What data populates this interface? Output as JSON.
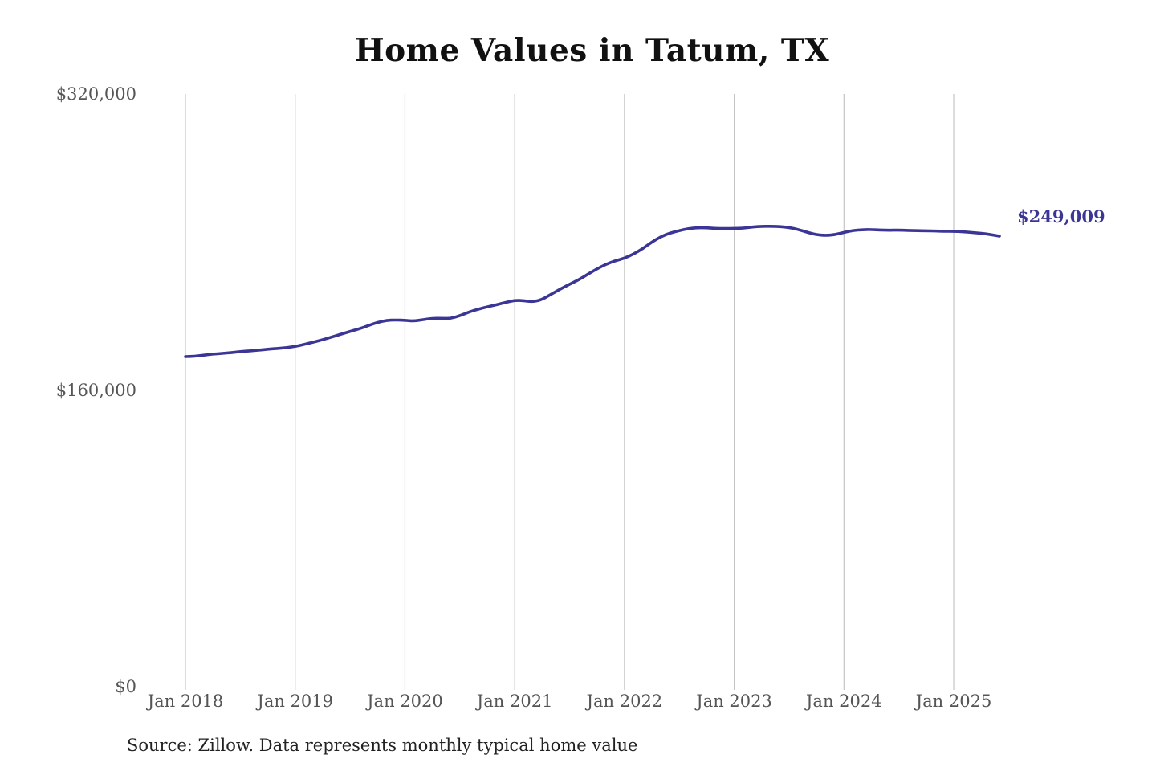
{
  "chart_data": {
    "type": "line",
    "title": "Home Values in Tatum, TX",
    "xlabel": "",
    "ylabel": "",
    "source_note": "Source: Zillow. Data represents monthly typical home value",
    "y_ticks": [
      {
        "value": 0,
        "label": "$0"
      },
      {
        "value": 160000,
        "label": "$160,000"
      },
      {
        "value": 320000,
        "label": "$320,000"
      }
    ],
    "ylim": [
      0,
      320000
    ],
    "x_ticks": [
      {
        "date": "2018-01",
        "label": "Jan 2018"
      },
      {
        "date": "2019-01",
        "label": "Jan 2019"
      },
      {
        "date": "2020-01",
        "label": "Jan 2020"
      },
      {
        "date": "2021-01",
        "label": "Jan 2021"
      },
      {
        "date": "2022-01",
        "label": "Jan 2022"
      },
      {
        "date": "2023-01",
        "label": "Jan 2023"
      },
      {
        "date": "2024-01",
        "label": "Jan 2024"
      },
      {
        "date": "2025-01",
        "label": "Jan 2025"
      }
    ],
    "grid": "vertical",
    "line_color": "#3b3596",
    "end_label": "$249,009",
    "series": [
      {
        "x": [
          "2018-01",
          "2018-02",
          "2018-03",
          "2018-04",
          "2018-05",
          "2018-06",
          "2018-07",
          "2018-08",
          "2018-09",
          "2018-10",
          "2018-11",
          "2018-12",
          "2019-01",
          "2019-02",
          "2019-03",
          "2019-04",
          "2019-05",
          "2019-06",
          "2019-07",
          "2019-08",
          "2019-09",
          "2019-10",
          "2019-11",
          "2019-12",
          "2020-01",
          "2020-02",
          "2020-03",
          "2020-04",
          "2020-05",
          "2020-06",
          "2020-07",
          "2020-08",
          "2020-09",
          "2020-10",
          "2020-11",
          "2020-12",
          "2021-01",
          "2021-02",
          "2021-03",
          "2021-04",
          "2021-05",
          "2021-06",
          "2021-07",
          "2021-08",
          "2021-09",
          "2021-10",
          "2021-11",
          "2021-12",
          "2022-01",
          "2022-02",
          "2022-03",
          "2022-04",
          "2022-05",
          "2022-06",
          "2022-07",
          "2022-08",
          "2022-09",
          "2022-10",
          "2022-11",
          "2022-12",
          "2023-01",
          "2023-02",
          "2023-03",
          "2023-04",
          "2023-05",
          "2023-06",
          "2023-07",
          "2023-08",
          "2023-09",
          "2023-10",
          "2023-11",
          "2023-12",
          "2024-01",
          "2024-02",
          "2024-03",
          "2024-04",
          "2024-05",
          "2024-06",
          "2024-07",
          "2024-08",
          "2024-09",
          "2024-10",
          "2024-11",
          "2024-12",
          "2025-01",
          "2025-02",
          "2025-03",
          "2025-04",
          "2025-05",
          "2025-06"
        ],
        "values": [
          178200,
          178400,
          179000,
          179600,
          179900,
          180400,
          180900,
          181300,
          181700,
          182200,
          182600,
          183000,
          183700,
          184800,
          186000,
          187300,
          188800,
          190300,
          191800,
          193200,
          195000,
          196700,
          197800,
          198000,
          197800,
          197400,
          198200,
          198900,
          198900,
          198800,
          200300,
          202300,
          203800,
          205100,
          206200,
          207500,
          208600,
          208400,
          207800,
          209000,
          211900,
          214700,
          217300,
          219700,
          222700,
          225600,
          228100,
          230000,
          231300,
          233600,
          236500,
          240100,
          243000,
          245000,
          246200,
          247300,
          247800,
          247700,
          247400,
          247300,
          247400,
          247500,
          248200,
          248500,
          248600,
          248400,
          247900,
          246800,
          245300,
          244000,
          243600,
          244000,
          245300,
          246300,
          246700,
          246800,
          246500,
          246400,
          246500,
          246300,
          246200,
          246100,
          246000,
          245900,
          245900,
          245600,
          245200,
          244800,
          244100,
          249009
        ]
      }
    ]
  }
}
